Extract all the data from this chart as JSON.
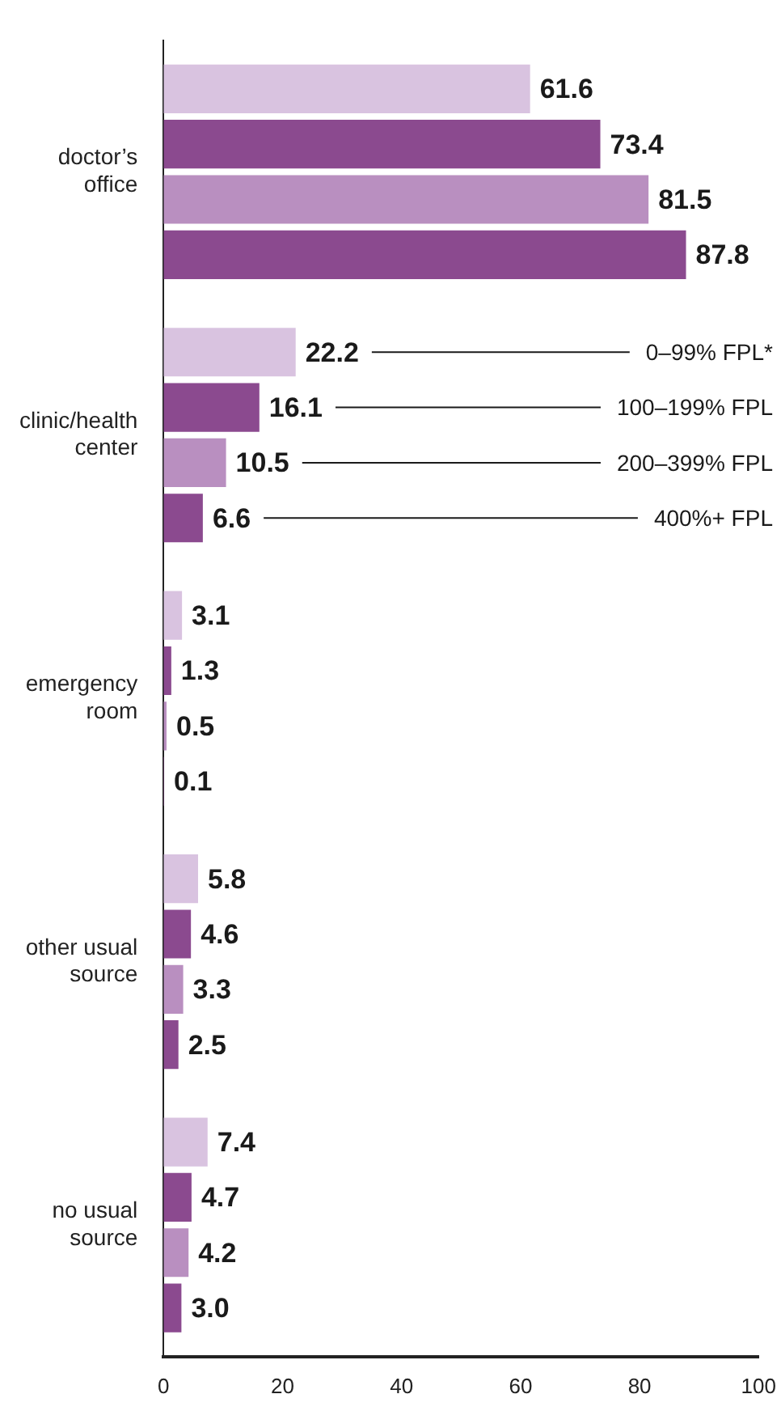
{
  "chart_data": {
    "type": "bar",
    "orientation": "horizontal",
    "categories": [
      "doctor’s office",
      "clinic/health center",
      "emergency room",
      "other usual source",
      "no usual source"
    ],
    "series": [
      {
        "name": "0–99% FPL*",
        "color": "#d9c3e0",
        "values": [
          61.6,
          22.2,
          3.1,
          5.8,
          7.4
        ],
        "value_labels": [
          "61.6",
          "22.2",
          "3.1",
          "5.8",
          "7.4"
        ]
      },
      {
        "name": "100–199% FPL",
        "color": "#8b4a8f",
        "values": [
          73.4,
          16.1,
          1.3,
          4.6,
          4.7
        ],
        "value_labels": [
          "73.4",
          "16.1",
          "1.3",
          "4.6",
          "4.7"
        ]
      },
      {
        "name": "200–399% FPL",
        "color": "#b98fc0",
        "values": [
          81.5,
          10.5,
          0.5,
          3.3,
          4.2
        ],
        "value_labels": [
          "81.5",
          "10.5",
          "0.5",
          "3.3",
          "4.2"
        ]
      },
      {
        "name": "400%+ FPL",
        "color": "#8b4a8f",
        "values": [
          87.8,
          6.6,
          0.1,
          2.5,
          3.0
        ],
        "value_labels": [
          "87.8",
          "6.6",
          "0.1",
          "2.5",
          "3.0"
        ]
      }
    ],
    "xlim": [
      0,
      100
    ],
    "xticks": [
      0,
      20,
      40,
      60,
      80,
      100
    ],
    "grid": false,
    "legend": false
  }
}
